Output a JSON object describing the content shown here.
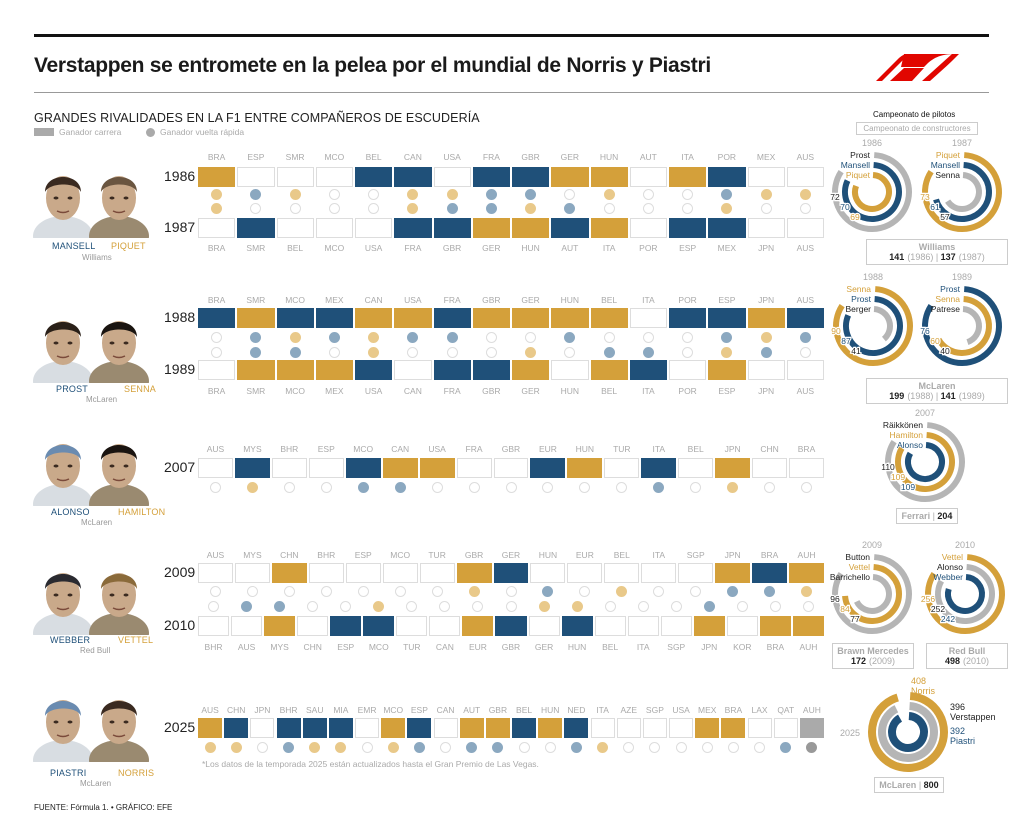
{
  "title": "Verstappen se entromete en la pelea por el mundial de Norris y Piastri",
  "subtitle": "GRANDES RIVALIDADES EN LA F1 ENTRE COMPAÑEROS DE ESCUDERÍA",
  "legend": {
    "race_winner": "Ganador carrera",
    "fastest_lap": "Ganador vuelta rápida"
  },
  "colors": {
    "blue": "#1f5079",
    "gold": "#d4a03a",
    "gray": "#aaaaaa",
    "f1_red": "#e10600"
  },
  "right_header": {
    "drivers": "Campeonato de pilotos",
    "constructors": "Campeonato de constructores"
  },
  "note": "*Los datos de la temporada 2025 están actualizados hasta el Gran Premio de Las Vegas.",
  "source": "FUENTE: Fórmula 1. • GRÁFICO: EFE",
  "chart_data": {
    "type": "table",
    "encoding": "B = first driver (blue), Y = second driver (gold), G = other/pending, . = none",
    "rivalries": [
      {
        "drivers": [
          "MANSELL",
          "PIQUET"
        ],
        "team": "Williams",
        "seasons": [
          {
            "year": "1986",
            "races": [
              "BRA",
              "ESP",
              "SMR",
              "MCO",
              "BEL",
              "CAN",
              "USA",
              "FRA",
              "GBR",
              "GER",
              "HUN",
              "AUT",
              "ITA",
              "POR",
              "MEX",
              "AUS"
            ],
            "wins": "Y...BB.BBYY.YB..",
            "fastest_laps": "YBY..YYBB.Y..BYY"
          },
          {
            "year": "1987",
            "races": [
              "BRA",
              "SMR",
              "BEL",
              "MCO",
              "USA",
              "FRA",
              "GBR",
              "GER",
              "HUN",
              "AUT",
              "ITA",
              "POR",
              "ESP",
              "MEX",
              "JPN",
              "AUS"
            ],
            "wins": ".B...BBYYBY.BB..",
            "fastest_laps": "Y....YBBYB...Y.."
          }
        ]
      },
      {
        "drivers": [
          "PROST",
          "SENNA"
        ],
        "team": "McLaren",
        "seasons": [
          {
            "year": "1988",
            "races": [
              "BRA",
              "SMR",
              "MCO",
              "MEX",
              "CAN",
              "USA",
              "FRA",
              "GBR",
              "GER",
              "HUN",
              "BEL",
              "ITA",
              "POR",
              "ESP",
              "JPN",
              "AUS"
            ],
            "wins": "BYBBYYBYYYY.BBYB",
            "fastest_laps": ".BYBYBB..B...BYB"
          },
          {
            "year": "1989",
            "races": [
              "BRA",
              "SMR",
              "MCO",
              "MEX",
              "USA",
              "CAN",
              "FRA",
              "GBR",
              "GER",
              "HUN",
              "BEL",
              "ITA",
              "POR",
              "ESP",
              "JPN",
              "AUS"
            ],
            "wins": ".YYYB.BBY.YB.Y..",
            "fastest_laps": ".BB.Y...Y.BB.YB."
          }
        ]
      },
      {
        "drivers": [
          "ALONSO",
          "HAMILTON"
        ],
        "team": "McLaren",
        "seasons": [
          {
            "year": "2007",
            "races": [
              "AUS",
              "MYS",
              "BHR",
              "ESP",
              "MCO",
              "CAN",
              "USA",
              "FRA",
              "GBR",
              "EUR",
              "HUN",
              "TUR",
              "ITA",
              "BEL",
              "JPN",
              "CHN",
              "BRA"
            ],
            "wins": ".B..BYY..BY.B.Y..",
            "fastest_laps": ".Y..BB......B.Y.."
          }
        ]
      },
      {
        "drivers": [
          "WEBBER",
          "VETTEL"
        ],
        "team": "Red Bull",
        "seasons": [
          {
            "year": "2009",
            "races": [
              "AUS",
              "MYS",
              "CHN",
              "BHR",
              "ESP",
              "MCO",
              "TUR",
              "GBR",
              "GER",
              "HUN",
              "EUR",
              "BEL",
              "ITA",
              "SGP",
              "JPN",
              "BRA",
              "AUH"
            ],
            "wins": "..Y....YB.....YBY",
            "fastest_laps": ".......Y.B.Y..BBY"
          },
          {
            "year": "2010",
            "races": [
              "BHR",
              "AUS",
              "MYS",
              "CHN",
              "ESP",
              "MCO",
              "TUR",
              "CAN",
              "EUR",
              "GBR",
              "GER",
              "HUN",
              "BEL",
              "ITA",
              "SGP",
              "JPN",
              "KOR",
              "BRA",
              "AUH"
            ],
            "wins": "..Y.BB..YB.B...Y.YY",
            "fastest_laps": ".BB..Y....YY...B..."
          }
        ]
      },
      {
        "drivers": [
          "PIASTRI",
          "NORRIS"
        ],
        "team": "McLaren",
        "seasons": [
          {
            "year": "2025",
            "races": [
              "AUS",
              "CHN",
              "JPN",
              "BHR",
              "SAU",
              "MIA",
              "EMR",
              "MCO",
              "ESP",
              "CAN",
              "AUT",
              "GBR",
              "BEL",
              "HUN",
              "NED",
              "ITA",
              "AZE",
              "SGP",
              "USA",
              "MEX",
              "BRA",
              "LAX",
              "QAT",
              "AUH"
            ],
            "wins": "YB.BBB.YB.YYBYB....YY..G",
            "fastest_laps": "YY.BYY.YB.BB..BY......BG"
          }
        ]
      }
    ],
    "championships": [
      {
        "year": "1986",
        "drivers": [
          {
            "name": "Prost",
            "points": 72,
            "c": "gray"
          },
          {
            "name": "Mansell",
            "points": 70,
            "c": "blue"
          },
          {
            "name": "Piquet",
            "points": 69,
            "c": "gold"
          }
        ]
      },
      {
        "year": "1987",
        "drivers": [
          {
            "name": "Piquet",
            "points": 73,
            "c": "gold"
          },
          {
            "name": "Mansell",
            "points": 61,
            "c": "blue"
          },
          {
            "name": "Senna",
            "points": 57,
            "c": "gray"
          }
        ]
      },
      {
        "year": "1988",
        "drivers": [
          {
            "name": "Senna",
            "points": 90,
            "c": "gold"
          },
          {
            "name": "Prost",
            "points": 87,
            "c": "blue"
          },
          {
            "name": "Berger",
            "points": 41,
            "c": "gray"
          }
        ]
      },
      {
        "year": "1989",
        "drivers": [
          {
            "name": "Prost",
            "points": 76,
            "c": "blue"
          },
          {
            "name": "Senna",
            "points": 60,
            "c": "gold"
          },
          {
            "name": "Patrese",
            "points": 40,
            "c": "gray"
          }
        ]
      },
      {
        "year": "2007",
        "drivers": [
          {
            "name": "Räikkönen",
            "points": 110,
            "c": "gray"
          },
          {
            "name": "Hamilton",
            "points": 109,
            "c": "gold"
          },
          {
            "name": "Alonso",
            "points": 109,
            "c": "blue"
          }
        ]
      },
      {
        "year": "2009",
        "drivers": [
          {
            "name": "Button",
            "points": 96,
            "c": "gray"
          },
          {
            "name": "Vettel",
            "points": 84,
            "c": "gold"
          },
          {
            "name": "Barrichello",
            "points": 77,
            "c": "gray"
          }
        ]
      },
      {
        "year": "2010",
        "drivers": [
          {
            "name": "Vettel",
            "points": 256,
            "c": "gold"
          },
          {
            "name": "Alonso",
            "points": 252,
            "c": "gray"
          },
          {
            "name": "Webber",
            "points": 242,
            "c": "blue"
          }
        ]
      },
      {
        "year": "2025",
        "drivers": [
          {
            "name": "Norris",
            "points": 408,
            "c": "gold"
          },
          {
            "name": "Verstappen",
            "points": 396,
            "c": "gray"
          },
          {
            "name": "Piastri",
            "points": 392,
            "c": "blue"
          }
        ]
      }
    ],
    "constructors": [
      {
        "team": "Williams",
        "entries": [
          {
            "points": "141",
            "year": "(1986)"
          },
          {
            "points": "137",
            "year": "(1987)"
          }
        ]
      },
      {
        "team": "McLaren",
        "entries": [
          {
            "points": "199",
            "year": "(1988)"
          },
          {
            "points": "141",
            "year": "(1989)"
          }
        ]
      },
      {
        "team": "Ferrari",
        "entries": [
          {
            "points": "204",
            "year": ""
          }
        ]
      },
      {
        "team": "Brawn Mercedes",
        "entries": [
          {
            "points": "172",
            "year": "(2009)"
          }
        ]
      },
      {
        "team": "Red Bull",
        "entries": [
          {
            "points": "498",
            "year": "(2010)"
          }
        ]
      },
      {
        "team": "McLaren",
        "entries": [
          {
            "points": "800",
            "year": ""
          }
        ]
      }
    ]
  }
}
